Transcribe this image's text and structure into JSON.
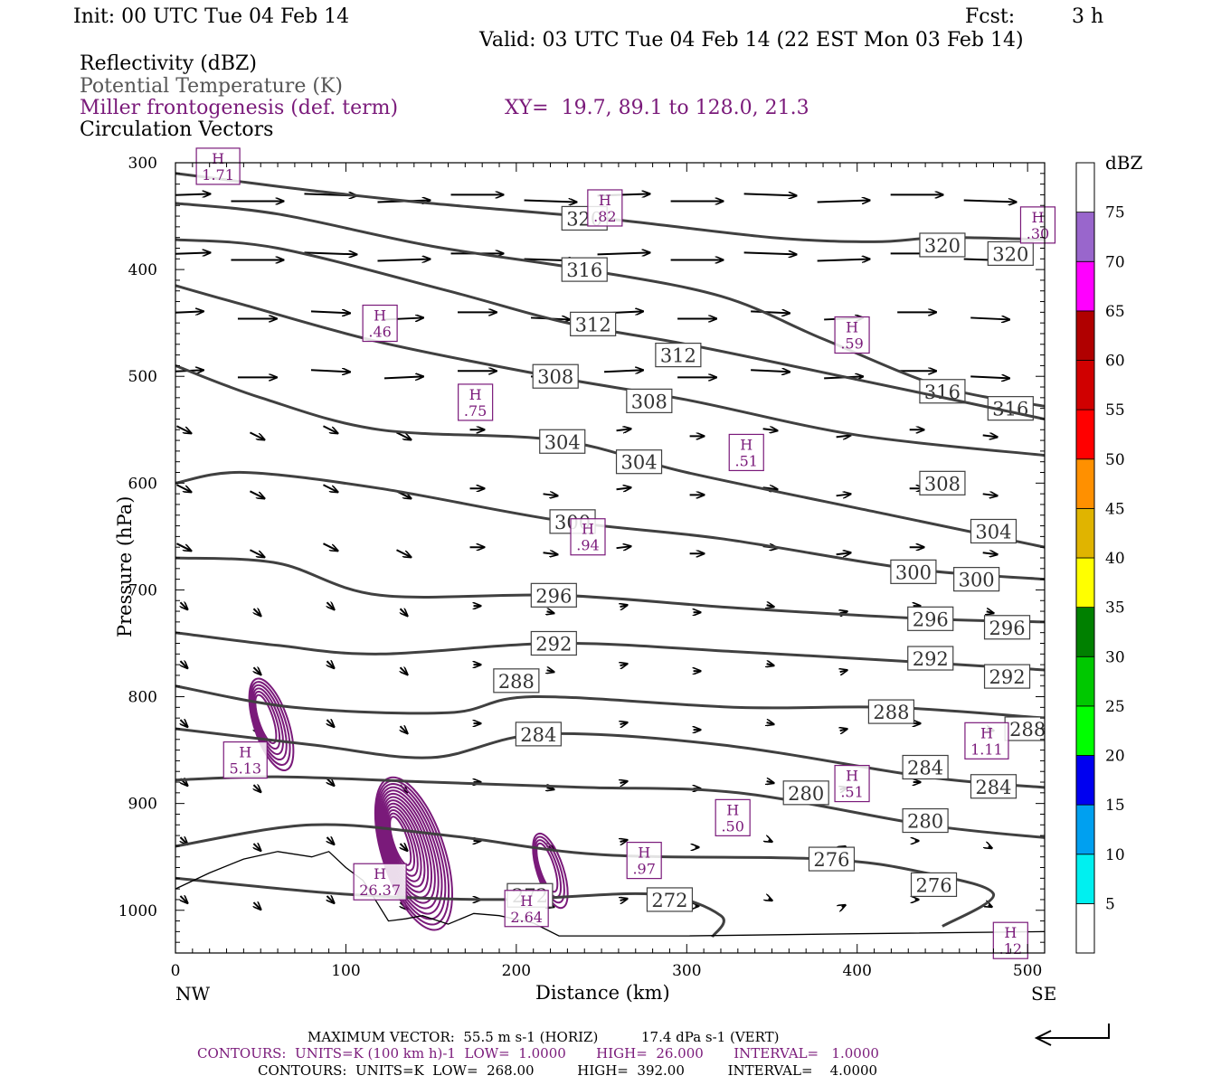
{
  "header": {
    "init": "Init: 00 UTC Tue 04 Feb 14",
    "fcst_label": "Fcst:",
    "fcst_value": "3 h",
    "valid": "Valid: 03 UTC Tue 04 Feb 14 (22 EST Mon 03 Feb 14)",
    "fields": [
      "Reflectivity (dBZ)",
      "Potential Temperature (K)",
      "Miller frontogenesis (def. term)",
      "Circulation Vectors"
    ],
    "xy": "XY=  19.7, 89.1 to 128.0, 21.3"
  },
  "colors": {
    "theta": "#404040",
    "frontogenesis": "#7a1a7a",
    "vectors": "#000000",
    "potential_temp_text": "#555555"
  },
  "chart_data": {
    "type": "cross-section",
    "xlabel": "Distance (km)",
    "ylabel": "Pressure (hPa)",
    "xlim": [
      0,
      510
    ],
    "ylim": [
      1040,
      300
    ],
    "x_ticks": [
      0,
      100,
      200,
      300,
      400,
      500
    ],
    "y_ticks": [
      300,
      400,
      500,
      600,
      700,
      800,
      900,
      1000
    ],
    "x_end_labels": [
      "NW",
      "SE"
    ],
    "colorbar": {
      "unit": "dBZ",
      "levels": [
        5,
        10,
        15,
        20,
        25,
        30,
        35,
        40,
        45,
        50,
        55,
        60,
        65,
        70,
        75
      ],
      "colors": [
        "#00f0f0",
        "#00a0f0",
        "#0000f0",
        "#00ff00",
        "#00c800",
        "#008000",
        "#ffff00",
        "#e0b400",
        "#ff9000",
        "#ff0000",
        "#d00000",
        "#b00000",
        "#ff00ff",
        "#9966cc",
        "#ffffff"
      ]
    },
    "theta_lines": [
      {
        "value": 320,
        "points": [
          [
            0,
            310
          ],
          [
            30,
            316
          ],
          [
            80,
            326
          ],
          [
            150,
            338
          ],
          [
            250,
            352
          ],
          [
            350,
            370
          ],
          [
            410,
            374
          ],
          [
            450,
            370
          ],
          [
            510,
            372
          ]
        ],
        "labels": [
          [
            240,
            352
          ],
          [
            450,
            377
          ],
          [
            490,
            385
          ]
        ]
      },
      {
        "value": 316,
        "points": [
          [
            0,
            338
          ],
          [
            60,
            348
          ],
          [
            150,
            378
          ],
          [
            240,
            400
          ],
          [
            320,
            425
          ],
          [
            380,
            465
          ],
          [
            450,
            510
          ],
          [
            510,
            528
          ]
        ],
        "labels": [
          [
            240,
            400
          ],
          [
            450,
            514
          ],
          [
            490,
            530
          ]
        ]
      },
      {
        "value": 312,
        "points": [
          [
            0,
            372
          ],
          [
            60,
            380
          ],
          [
            160,
            420
          ],
          [
            230,
            450
          ],
          [
            300,
            470
          ],
          [
            400,
            503
          ],
          [
            510,
            540
          ]
        ],
        "labels": [
          [
            245,
            451
          ],
          [
            295,
            480
          ]
        ]
      },
      {
        "value": 308,
        "points": [
          [
            0,
            415
          ],
          [
            40,
            433
          ],
          [
            120,
            468
          ],
          [
            220,
            500
          ],
          [
            300,
            522
          ],
          [
            400,
            555
          ],
          [
            510,
            574
          ]
        ],
        "labels": [
          [
            223,
            500
          ],
          [
            278,
            523
          ],
          [
            450,
            600
          ]
        ]
      },
      {
        "value": 304,
        "points": [
          [
            0,
            490
          ],
          [
            50,
            520
          ],
          [
            120,
            550
          ],
          [
            225,
            560
          ],
          [
            300,
            590
          ],
          [
            420,
            630
          ],
          [
            510,
            660
          ]
        ],
        "labels": [
          [
            227,
            561
          ],
          [
            272,
            580
          ],
          [
            480,
            645
          ]
        ]
      },
      {
        "value": 300,
        "points": [
          [
            0,
            600
          ],
          [
            40,
            590
          ],
          [
            120,
            605
          ],
          [
            225,
            635
          ],
          [
            320,
            652
          ],
          [
            430,
            680
          ],
          [
            510,
            690
          ]
        ],
        "labels": [
          [
            233,
            636
          ],
          [
            433,
            683
          ],
          [
            470,
            690
          ]
        ]
      },
      {
        "value": 296,
        "points": [
          [
            0,
            670
          ],
          [
            60,
            675
          ],
          [
            120,
            705
          ],
          [
            225,
            705
          ],
          [
            330,
            717
          ],
          [
            440,
            727
          ],
          [
            510,
            730
          ]
        ],
        "labels": [
          [
            222,
            705
          ],
          [
            443,
            727
          ],
          [
            488,
            735
          ]
        ]
      },
      {
        "value": 292,
        "points": [
          [
            0,
            740
          ],
          [
            60,
            752
          ],
          [
            120,
            760
          ],
          [
            225,
            750
          ],
          [
            330,
            758
          ],
          [
            440,
            768
          ],
          [
            510,
            775
          ]
        ],
        "labels": [
          [
            222,
            750
          ],
          [
            443,
            764
          ],
          [
            488,
            781
          ]
        ]
      },
      {
        "value": 288,
        "points": [
          [
            0,
            790
          ],
          [
            70,
            810
          ],
          [
            160,
            815
          ],
          [
            210,
            800
          ],
          [
            330,
            810
          ],
          [
            420,
            810
          ],
          [
            510,
            820
          ]
        ],
        "labels": [
          [
            200,
            785
          ],
          [
            420,
            814
          ],
          [
            500,
            830
          ]
        ]
      },
      {
        "value": 284,
        "points": [
          [
            0,
            830
          ],
          [
            80,
            845
          ],
          [
            150,
            857
          ],
          [
            215,
            835
          ],
          [
            320,
            845
          ],
          [
            440,
            875
          ],
          [
            510,
            885
          ]
        ],
        "labels": [
          [
            213,
            835
          ],
          [
            440,
            866
          ],
          [
            480,
            884
          ]
        ]
      },
      {
        "value": 280,
        "points": [
          [
            0,
            878
          ],
          [
            60,
            875
          ],
          [
            150,
            880
          ],
          [
            240,
            885
          ],
          [
            330,
            890
          ],
          [
            440,
            920
          ],
          [
            510,
            932
          ]
        ],
        "labels": [
          [
            370,
            890
          ],
          [
            440,
            916
          ]
        ]
      },
      {
        "value": 276,
        "points": [
          [
            0,
            940
          ],
          [
            80,
            920
          ],
          [
            160,
            930
          ],
          [
            250,
            948
          ],
          [
            380,
            952
          ],
          [
            440,
            965
          ],
          [
            480,
            985
          ],
          [
            450,
            1015
          ]
        ],
        "labels": [
          [
            385,
            952
          ],
          [
            445,
            976
          ]
        ]
      },
      {
        "value": 272,
        "points": [
          [
            0,
            970
          ],
          [
            100,
            985
          ],
          [
            190,
            990
          ],
          [
            280,
            985
          ],
          [
            320,
            1005
          ],
          [
            315,
            1025
          ]
        ],
        "labels": [
          [
            208,
            986
          ],
          [
            290,
            990
          ]
        ]
      }
    ],
    "fronto_maxima": [
      {
        "label": "1.71",
        "x": 25,
        "p": 305
      },
      {
        "label": ".82",
        "x": 252,
        "p": 344
      },
      {
        "label": ".30",
        "x": 506,
        "p": 360
      },
      {
        "label": ".46",
        "x": 120,
        "p": 452
      },
      {
        "label": ".75",
        "x": 176,
        "p": 526
      },
      {
        "label": ".59",
        "x": 397,
        "p": 463
      },
      {
        "label": ".51",
        "x": 335,
        "p": 573
      },
      {
        "label": ".94",
        "x": 242,
        "p": 652
      },
      {
        "label": "5.13",
        "x": 41,
        "p": 861
      },
      {
        "label": "1.11",
        "x": 476,
        "p": 843
      },
      {
        "label": ".51",
        "x": 397,
        "p": 883
      },
      {
        "label": ".50",
        "x": 327,
        "p": 915
      },
      {
        "label": ".97",
        "x": 275,
        "p": 955
      },
      {
        "label": "26.37",
        "x": 120,
        "p": 975
      },
      {
        "label": "2.64",
        "x": 206,
        "p": 1000
      },
      {
        "label": ".12",
        "x": 490,
        "p": 1030
      }
    ],
    "terrain": [
      [
        0,
        980
      ],
      [
        20,
        965
      ],
      [
        40,
        952
      ],
      [
        60,
        945
      ],
      [
        80,
        950
      ],
      [
        90,
        945
      ],
      [
        100,
        960
      ],
      [
        110,
        972
      ],
      [
        118,
        992
      ],
      [
        125,
        1010
      ],
      [
        135,
        1008
      ],
      [
        145,
        1005
      ],
      [
        160,
        1013
      ],
      [
        175,
        1003
      ],
      [
        190,
        1005
      ],
      [
        210,
        1012
      ],
      [
        225,
        1024
      ],
      [
        300,
        1024
      ],
      [
        400,
        1022
      ],
      [
        510,
        1020
      ]
    ]
  },
  "footer": {
    "max_vector": "MAXIMUM VECTOR:  55.5 m s-1 (HORIZ)          17.4 dPa s-1 (VERT)",
    "contours_fronto": "CONTOURS:  UNITS=K (100 km h)-1  LOW=  1.0000       HIGH=  26.000       INTERVAL=   1.0000",
    "contours_theta": "CONTOURS:  UNITS=K  LOW=  268.00          HIGH=  392.00          INTERVAL=    4.0000"
  }
}
